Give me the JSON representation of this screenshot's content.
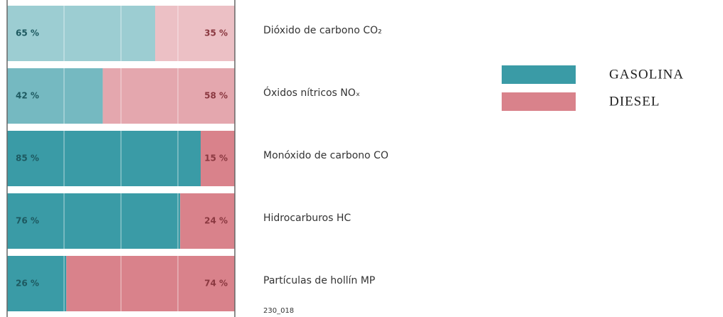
{
  "chart_data": {
    "type": "stacked_bar_100",
    "orientation": "horizontal",
    "categories": [
      "Dióxido de carbono CO₂",
      "Óxidos nítricos NOₓ",
      "Monóxido de carbono CO",
      "Hidrocarburos HC",
      "Partículas de hollín MP"
    ],
    "series": [
      {
        "name": "GASOLINA",
        "color": "#3a9ba6",
        "values": [
          65,
          42,
          85,
          76,
          26
        ],
        "value_labels": [
          "65 %",
          "42 %",
          "85 %",
          "76 %",
          "26 %"
        ]
      },
      {
        "name": "DIESEL",
        "color": "#d9828b",
        "values": [
          35,
          58,
          15,
          24,
          74
        ],
        "value_labels": [
          "35 %",
          "58 %",
          "15 %",
          "24 %",
          "74 %"
        ]
      }
    ],
    "xlim": [
      0,
      100
    ],
    "xticks": [
      0,
      25,
      50,
      75,
      100
    ],
    "grid": true,
    "legend": "right",
    "footnote": "230_018"
  }
}
